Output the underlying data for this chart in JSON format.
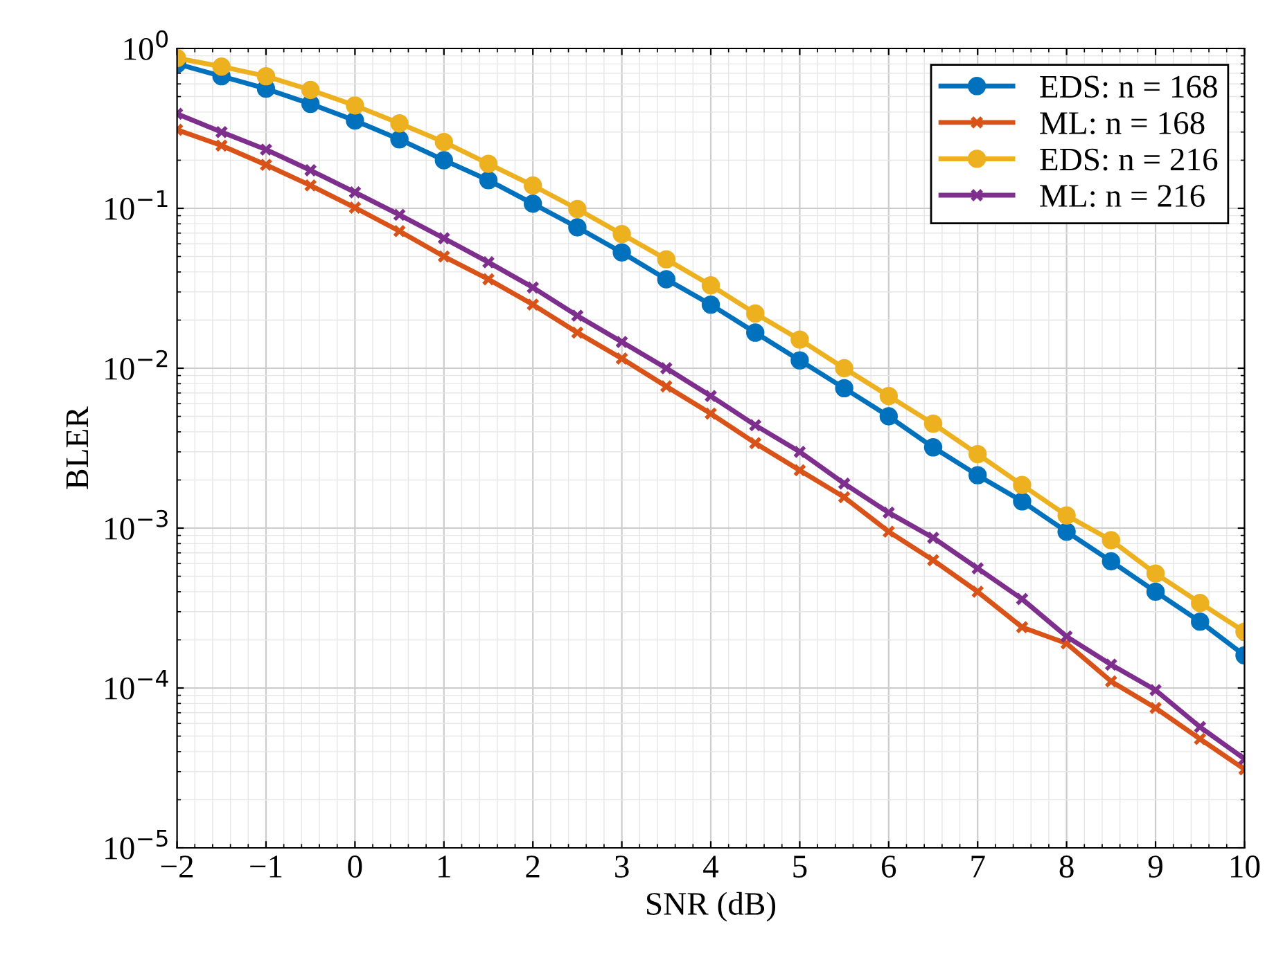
{
  "chart_data": {
    "type": "line",
    "xlabel": "SNR (dB)",
    "ylabel": "BLER",
    "log": "y",
    "grid": true,
    "legend": "top right",
    "line_style": "solid",
    "x": [
      -2,
      -1.5,
      -1,
      -0.5,
      0,
      0.5,
      1,
      1.5,
      2,
      2.5,
      3,
      3.5,
      4,
      4.5,
      5,
      5.5,
      6,
      6.5,
      7,
      7.5,
      8,
      8.5,
      9,
      9.5,
      10
    ],
    "xlim": [
      -2,
      10
    ],
    "ylim": [
      1e-05,
      1
    ],
    "xticks": [
      {
        "value": -2,
        "label": "−2"
      },
      {
        "value": -1,
        "label": "−1"
      },
      0,
      1,
      2,
      3,
      4,
      5,
      6,
      7,
      8,
      9,
      10
    ],
    "yticks": [
      {
        "value": 1e-05,
        "label": "10$^{−5}$"
      },
      {
        "value": 0.0001,
        "label": "10$^{−4}$"
      },
      {
        "value": 0.001,
        "label": "10$^{−3}$"
      },
      {
        "value": 0.01,
        "label": "10$^{−2}$"
      },
      {
        "value": 0.1,
        "label": "10$^{−1}$"
      },
      {
        "value": 1,
        "label": "10$^{0}$"
      }
    ],
    "series": [
      {
        "name": "EDS: n = 168",
        "color": "#0072bd",
        "marker": "circle",
        "values": [
          0.8,
          0.67,
          0.56,
          0.45,
          0.354,
          0.27,
          0.2,
          0.15,
          0.107,
          0.076,
          0.053,
          0.036,
          0.025,
          0.0167,
          0.0112,
          0.0075,
          0.005,
          0.0032,
          0.00214,
          0.00147,
          0.00095,
          0.00062,
          0.0004,
          0.00026,
          0.00016
        ]
      },
      {
        "name": "ML: n = 168",
        "color": "#d95319",
        "marker": "cross",
        "values": [
          0.31,
          0.247,
          0.187,
          0.139,
          0.101,
          0.072,
          0.05,
          0.036,
          0.025,
          0.0167,
          0.0115,
          0.0077,
          0.0052,
          0.0034,
          0.0023,
          0.00156,
          0.00095,
          0.00063,
          0.0004,
          0.00024,
          0.00019,
          0.00011,
          7.5e-05,
          4.8e-05,
          3.1e-05
        ]
      },
      {
        "name": "EDS: n = 216",
        "color": "#edb120",
        "marker": "circle",
        "values": [
          0.87,
          0.77,
          0.67,
          0.55,
          0.44,
          0.34,
          0.26,
          0.19,
          0.139,
          0.099,
          0.069,
          0.048,
          0.033,
          0.022,
          0.0151,
          0.01,
          0.0067,
          0.0045,
          0.0029,
          0.00186,
          0.0012,
          0.00084,
          0.00052,
          0.00034,
          0.000225
        ]
      },
      {
        "name": "ML: n = 216",
        "color": "#7e2f8e",
        "marker": "cross",
        "values": [
          0.39,
          0.3,
          0.233,
          0.173,
          0.126,
          0.091,
          0.065,
          0.046,
          0.032,
          0.0213,
          0.0146,
          0.01,
          0.0067,
          0.0044,
          0.003,
          0.0019,
          0.00125,
          0.00087,
          0.00056,
          0.00036,
          0.00021,
          0.00014,
          9.7e-05,
          5.7e-05,
          3.6e-05
        ]
      }
    ]
  }
}
